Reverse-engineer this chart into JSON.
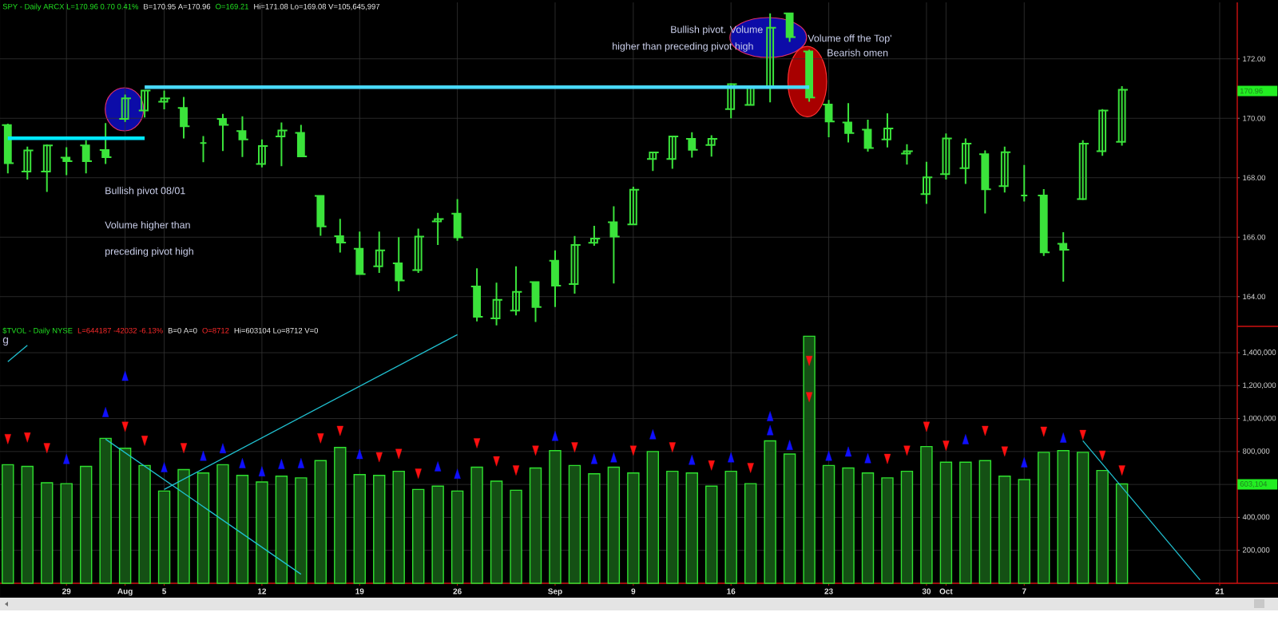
{
  "chart_data": [
    {
      "type": "candlestick",
      "title": "SPY - Daily ARCX L=170.96 0.70 0.41%",
      "subtitle": "B=170.95 A=170.96",
      "categories": [
        null,
        null,
        null,
        null,
        null,
        null,
        null,
        null,
        null,
        null,
        null,
        null,
        null,
        null,
        null,
        null,
        null,
        null,
        null,
        null,
        null,
        null,
        null,
        null,
        null,
        null,
        null,
        null,
        null,
        null,
        null,
        null,
        null,
        null,
        null,
        null,
        null,
        null,
        null,
        null,
        null,
        null,
        null,
        null,
        null,
        null,
        null,
        null,
        null,
        null,
        null,
        null,
        null,
        null,
        null,
        null,
        null,
        null,
        null,
        null,
        null,
        null,
        null
      ],
      "ohlc": [
        [
          169.77,
          169.82,
          168.15,
          168.49
        ],
        [
          168.21,
          169.05,
          167.94,
          168.92
        ],
        [
          168.21,
          169.12,
          167.52,
          169.09
        ],
        [
          168.68,
          169.03,
          168.09,
          168.56
        ],
        [
          169.09,
          169.26,
          168.15,
          168.56
        ],
        [
          168.93,
          169.84,
          168.46,
          168.69
        ],
        [
          169.98,
          170.8,
          169.88,
          170.67
        ],
        [
          170.26,
          170.94,
          170.03,
          170.93
        ],
        [
          170.56,
          170.93,
          170.3,
          170.67
        ],
        [
          170.35,
          170.72,
          169.32,
          169.73
        ],
        [
          169.17,
          169.4,
          168.52,
          169.17
        ],
        [
          169.98,
          170.15,
          168.9,
          169.78
        ],
        [
          169.57,
          170.07,
          168.7,
          169.29
        ],
        [
          168.46,
          169.29,
          168.35,
          169.07
        ],
        [
          169.39,
          169.86,
          168.39,
          169.59
        ],
        [
          169.51,
          169.78,
          168.7,
          168.72
        ],
        [
          167.39,
          167.39,
          166.05,
          166.36
        ],
        [
          166.03,
          166.62,
          165.48,
          165.82
        ],
        [
          165.61,
          166.19,
          164.74,
          164.76
        ],
        [
          165.02,
          166.19,
          164.8,
          165.56
        ],
        [
          165.12,
          166.0,
          164.18,
          164.54
        ],
        [
          164.89,
          166.29,
          164.8,
          166.02
        ],
        [
          166.53,
          166.82,
          165.74,
          166.61
        ],
        [
          166.79,
          167.28,
          165.88,
          165.99
        ],
        [
          164.34,
          164.95,
          163.17,
          163.32
        ],
        [
          163.27,
          164.47,
          163.03,
          163.89
        ],
        [
          163.53,
          165.02,
          163.37,
          164.16
        ],
        [
          164.49,
          164.49,
          163.15,
          163.65
        ],
        [
          165.21,
          165.56,
          163.65,
          164.37
        ],
        [
          164.42,
          166.04,
          164.1,
          165.74
        ],
        [
          165.81,
          166.38,
          165.71,
          165.95
        ],
        [
          166.5,
          167.04,
          164.44,
          166.02
        ],
        [
          166.43,
          167.7,
          166.43,
          167.6
        ],
        [
          168.63,
          168.88,
          168.23,
          168.85
        ],
        [
          168.63,
          169.39,
          168.3,
          169.39
        ],
        [
          169.31,
          169.53,
          168.68,
          168.94
        ],
        [
          169.1,
          169.43,
          168.71,
          169.31
        ],
        [
          170.31,
          171.18,
          170.0,
          171.15
        ],
        [
          170.45,
          171.08,
          170.43,
          171.05
        ],
        [
          171.08,
          173.53,
          170.54,
          173.05
        ],
        [
          173.53,
          173.56,
          172.57,
          172.73
        ],
        [
          172.25,
          172.31,
          170.56,
          170.7
        ],
        [
          170.46,
          170.62,
          169.36,
          169.89
        ],
        [
          169.86,
          170.51,
          169.19,
          169.5
        ],
        [
          169.62,
          169.95,
          168.88,
          169.0
        ],
        [
          169.29,
          170.17,
          169.02,
          169.66
        ],
        [
          168.81,
          169.13,
          168.44,
          168.89
        ],
        [
          167.45,
          168.54,
          167.12,
          168.01
        ],
        [
          168.12,
          169.49,
          167.94,
          169.32
        ],
        [
          168.32,
          169.32,
          167.79,
          169.15
        ],
        [
          168.79,
          168.92,
          166.8,
          167.61
        ],
        [
          167.72,
          169.05,
          167.5,
          168.86
        ],
        [
          167.4,
          168.43,
          167.2,
          167.4
        ],
        [
          167.4,
          167.62,
          165.37,
          165.49
        ],
        [
          165.78,
          166.17,
          164.5,
          165.58
        ],
        [
          167.28,
          169.26,
          167.25,
          169.15
        ],
        [
          168.89,
          170.31,
          168.74,
          170.26
        ],
        [
          169.21,
          171.08,
          169.08,
          170.96
        ],
        null,
        null,
        null,
        null,
        null
      ],
      "color": "#3be33b",
      "series": [
        {
          "type": "line",
          "color": "#00e8ff",
          "values": [
            169.33,
            null,
            null,
            null,
            null,
            null,
            null,
            169.33,
            null,
            null,
            null,
            null,
            null,
            null,
            null,
            null,
            null,
            null,
            null,
            null,
            null,
            null,
            null,
            null,
            null,
            null,
            null,
            null,
            null,
            null,
            null,
            null,
            null,
            null,
            null,
            null,
            null,
            null,
            null,
            null,
            null,
            null,
            null,
            null,
            null,
            null,
            null,
            null,
            null,
            null,
            null,
            null,
            null,
            null,
            null,
            null,
            null,
            null,
            null,
            null,
            null,
            null,
            null
          ]
        },
        {
          "type": "line",
          "color": "#48d8f8",
          "values": [
            null,
            null,
            null,
            null,
            null,
            null,
            null,
            171.05,
            null,
            null,
            null,
            null,
            null,
            null,
            null,
            null,
            null,
            null,
            null,
            null,
            null,
            null,
            null,
            null,
            null,
            null,
            null,
            null,
            null,
            null,
            null,
            null,
            null,
            null,
            null,
            null,
            null,
            null,
            null,
            null,
            null,
            171.05,
            null,
            null,
            null,
            null,
            null,
            null,
            null,
            null,
            null,
            null,
            null,
            null,
            null,
            null,
            null,
            null,
            null,
            null,
            null,
            null,
            null
          ]
        }
      ],
      "ylim": [
        163.0,
        173.9
      ],
      "yticks": [
        {
          "value": 164,
          "label": "164.00"
        },
        {
          "value": 166,
          "label": "166.00"
        },
        {
          "value": 168,
          "label": "168.00"
        },
        {
          "value": 170,
          "label": "170.00"
        },
        {
          "value": 172,
          "label": "172.00"
        }
      ],
      "grid": true,
      "tick_labels": "y",
      "annotations": [
        "O=169.21",
        "Hi=171.08 Lo=169.08 V=105,645,997",
        "Bullish pivot 08/01",
        "Volume higher than",
        "preceding pivot high",
        "Bullish pivot. Volume",
        "higher than preceding pivot high",
        "Volume off the Top'",
        "Bearish omen",
        "170.96"
      ]
    },
    {
      "type": "bar",
      "title": "$TVOL - Daily NYSE",
      "subtitle": "L=644187 -42032 -6.13%",
      "categories": [
        null,
        null,
        null,
        "29",
        null,
        null,
        "Aug",
        null,
        "5",
        null,
        null,
        null,
        null,
        "12",
        null,
        null,
        null,
        null,
        "19",
        null,
        null,
        null,
        null,
        "26",
        null,
        null,
        null,
        null,
        "Sep",
        null,
        null,
        null,
        "9",
        null,
        null,
        null,
        null,
        "16",
        null,
        null,
        null,
        null,
        "23",
        null,
        null,
        null,
        null,
        "30",
        "Oct",
        null,
        null,
        null,
        "7",
        null,
        null,
        null,
        null,
        null,
        null,
        null,
        null,
        null,
        "21"
      ],
      "series": [
        {
          "color": "#145014",
          "values": [
            720000,
            710000,
            610000,
            605000,
            710000,
            880000,
            820000,
            715000,
            560000,
            690000,
            670000,
            720000,
            655000,
            615000,
            650000,
            640000,
            745000,
            825000,
            660000,
            655000,
            680000,
            570000,
            590000,
            560000,
            705000,
            620000,
            565000,
            700000,
            805000,
            715000,
            665000,
            705000,
            670000,
            800000,
            680000,
            670000,
            590000,
            680000,
            605000,
            865000,
            785000,
            1500000,
            715000,
            700000,
            670000,
            640000,
            680000,
            830000,
            735000,
            735000,
            745000,
            650000,
            630000,
            795000,
            805000,
            795000,
            685000,
            603104,
            null,
            null,
            null,
            null,
            null
          ]
        },
        {
          "type": "scatter",
          "marker": "triangle",
          "color": "#1010ff",
          "values": [
            null,
            null,
            null,
            745000,
            null,
            1030000,
            1250000,
            null,
            695000,
            null,
            765000,
            810000,
            720000,
            670000,
            715000,
            720000,
            null,
            null,
            775000,
            null,
            null,
            null,
            700000,
            655000,
            null,
            null,
            null,
            null,
            885000,
            null,
            745000,
            755000,
            null,
            895000,
            null,
            740000,
            null,
            755000,
            null,
            1005000,
            830000,
            null,
            765000,
            790000,
            750000,
            null,
            null,
            null,
            null,
            865000,
            null,
            null,
            725000,
            null,
            875000,
            null,
            null,
            null,
            null,
            null,
            null,
            null,
            null
          ]
        },
        {
          "type": "scatter",
          "marker": "triangle",
          "color": "#1010ff",
          "values": [
            null,
            null,
            null,
            null,
            null,
            null,
            null,
            null,
            null,
            null,
            null,
            null,
            null,
            null,
            null,
            null,
            null,
            null,
            null,
            null,
            null,
            null,
            null,
            null,
            null,
            null,
            null,
            null,
            null,
            null,
            null,
            null,
            null,
            null,
            null,
            null,
            null,
            null,
            null,
            920000,
            null,
            null,
            null,
            null,
            null,
            null,
            null,
            null,
            null,
            null,
            null,
            null,
            null,
            null,
            null,
            null,
            null,
            null,
            null,
            null,
            null,
            null,
            null
          ]
        },
        {
          "type": "scatter",
          "marker": "triangle",
          "color": "#ff1010",
          "values": [
            885000,
            895000,
            830000,
            null,
            null,
            null,
            960000,
            875000,
            null,
            830000,
            null,
            null,
            null,
            null,
            null,
            null,
            890000,
            935000,
            null,
            775000,
            795000,
            675000,
            null,
            null,
            860000,
            750000,
            695000,
            815000,
            null,
            835000,
            null,
            null,
            815000,
            null,
            835000,
            null,
            725000,
            null,
            710000,
            null,
            null,
            1360000,
            null,
            null,
            null,
            765000,
            815000,
            960000,
            845000,
            null,
            935000,
            810000,
            null,
            930000,
            null,
            910000,
            785000,
            695000,
            null,
            null,
            null,
            null,
            null
          ]
        },
        {
          "type": "scatter",
          "marker": "triangle",
          "color": "#ff1010",
          "values": [
            null,
            null,
            null,
            null,
            null,
            null,
            null,
            null,
            null,
            null,
            null,
            null,
            null,
            null,
            null,
            null,
            null,
            null,
            null,
            null,
            null,
            null,
            null,
            null,
            null,
            null,
            null,
            null,
            null,
            null,
            null,
            null,
            null,
            null,
            null,
            null,
            null,
            null,
            null,
            null,
            null,
            1140000,
            null,
            null,
            null,
            null,
            null,
            null,
            null,
            null,
            null,
            null,
            null,
            null,
            null,
            null,
            null,
            null,
            null,
            null,
            null,
            null,
            null
          ]
        },
        {
          "type": "line",
          "color": "#20c0d0",
          "values": [
            1345000,
            1445000,
            null,
            null,
            null,
            null,
            null,
            null,
            null,
            null,
            null,
            null,
            null,
            null,
            null,
            null,
            null,
            null,
            null,
            null,
            null,
            null,
            null,
            null,
            null,
            null,
            null,
            null,
            null,
            null,
            null,
            null,
            null,
            null,
            null,
            null,
            null,
            null,
            null,
            null,
            null,
            null,
            null,
            null,
            null,
            null,
            null,
            null,
            null,
            null,
            null,
            null,
            null,
            null,
            null,
            null,
            null,
            null,
            null,
            null,
            null,
            null,
            null
          ]
        },
        {
          "type": "line",
          "color": "#20c0d0",
          "values": [
            null,
            null,
            null,
            null,
            null,
            null,
            null,
            null,
            570000,
            null,
            null,
            null,
            null,
            null,
            null,
            null,
            null,
            null,
            null,
            null,
            null,
            null,
            null,
            1510000,
            null,
            null,
            null,
            null,
            null,
            null,
            null,
            null,
            null,
            null,
            null,
            null,
            null,
            null,
            null,
            null,
            null,
            null,
            null,
            null,
            null,
            null,
            null,
            null,
            null,
            null,
            null,
            null,
            null,
            null,
            null,
            null,
            null,
            null,
            null,
            null,
            null,
            null,
            null
          ]
        },
        {
          "type": "line",
          "color": "#20c0d0",
          "values": [
            null,
            null,
            null,
            null,
            null,
            875000,
            null,
            null,
            null,
            null,
            null,
            null,
            null,
            null,
            null,
            55000,
            null,
            null,
            null,
            null,
            null,
            null,
            null,
            null,
            null,
            null,
            null,
            null,
            null,
            null,
            null,
            null,
            null,
            null,
            null,
            null,
            null,
            null,
            null,
            null,
            null,
            null,
            null,
            null,
            null,
            null,
            null,
            null,
            null,
            null,
            null,
            null,
            null,
            null,
            null,
            null,
            null,
            null,
            null,
            null,
            null,
            null,
            null
          ]
        },
        {
          "type": "line",
          "color": "#20c0d0",
          "values": [
            null,
            null,
            null,
            null,
            null,
            null,
            null,
            null,
            null,
            null,
            null,
            null,
            null,
            null,
            null,
            null,
            null,
            null,
            null,
            null,
            null,
            null,
            null,
            null,
            null,
            null,
            null,
            null,
            null,
            null,
            null,
            null,
            null,
            null,
            null,
            null,
            null,
            null,
            null,
            null,
            null,
            null,
            null,
            null,
            null,
            null,
            null,
            null,
            null,
            null,
            null,
            null,
            null,
            null,
            null,
            865000,
            null,
            null,
            null,
            null,
            null,
            20000,
            null
          ]
        }
      ],
      "ylim": [
        0,
        1560000
      ],
      "yticks": [
        {
          "value": 200000,
          "label": "200,000"
        },
        {
          "value": 400000,
          "label": "400,000"
        },
        {
          "value": 600000,
          "label": null
        },
        {
          "value": 800000,
          "label": "800,000"
        },
        {
          "value": 1000000,
          "label": "1,000,000"
        },
        {
          "value": 1200000,
          "label": "1,200,000"
        },
        {
          "value": 1400000,
          "label": "1,400,000"
        }
      ],
      "grid": true,
      "annotations": [
        "B=0 A=0",
        "O=8712",
        "Hi=603104 Lo=8712 V=0",
        "g",
        "603,104"
      ]
    }
  ]
}
